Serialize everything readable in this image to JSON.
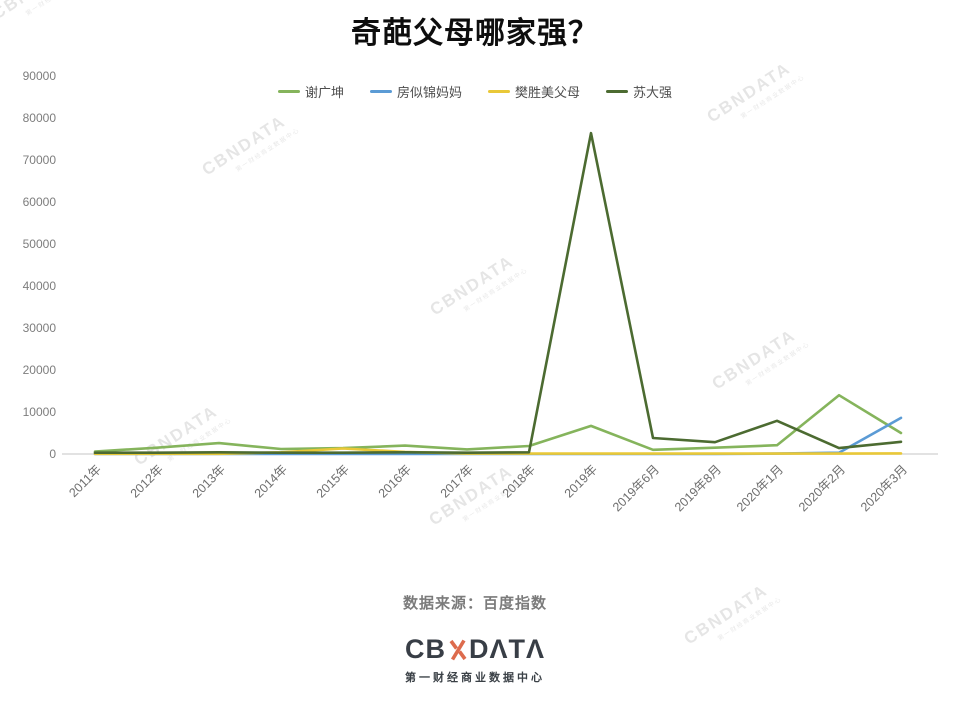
{
  "title": "奇葩父母哪家强？",
  "watermark": {
    "text": "CBNDATA",
    "subtext": "第一财经商业数据中心"
  },
  "source_note": "数据来源：百度指数",
  "logo": {
    "prefix": "CB",
    "suffix": "DΛTΛ",
    "n_color": "#DD6B4D",
    "subtitle": "第一财经商业数据中心"
  },
  "chart_data": {
    "type": "line",
    "title": "奇葩父母哪家强？",
    "categories": [
      "2011年",
      "2012年",
      "2013年",
      "2014年",
      "2015年",
      "2016年",
      "2017年",
      "2018年",
      "2019年",
      "2019年6月",
      "2019年8月",
      "2020年1月",
      "2020年2月",
      "2020年3月"
    ],
    "series": [
      {
        "name": "谢广坤",
        "color": "#85B45C",
        "values": [
          600,
          1500,
          2600,
          1200,
          1400,
          2000,
          1100,
          1900,
          6700,
          1000,
          1500,
          2100,
          14000,
          5000
        ]
      },
      {
        "name": "房似锦妈妈",
        "color": "#5B9BD5",
        "values": [
          0,
          0,
          0,
          0,
          0,
          0,
          0,
          0,
          0,
          0,
          0,
          100,
          300,
          8600
        ]
      },
      {
        "name": "樊胜美父母",
        "color": "#E9C838",
        "values": [
          50,
          50,
          50,
          400,
          1300,
          500,
          100,
          100,
          100,
          100,
          100,
          100,
          100,
          150
        ]
      },
      {
        "name": "苏大强",
        "color": "#4C6B31",
        "values": [
          300,
          300,
          400,
          300,
          300,
          400,
          300,
          400,
          76400,
          3800,
          2800,
          7900,
          1400,
          2900
        ]
      }
    ],
    "xlabel": "",
    "ylabel": "",
    "ylim": [
      0,
      90000
    ],
    "ytick_step": 10000,
    "grid": false,
    "legend_position": "top"
  }
}
